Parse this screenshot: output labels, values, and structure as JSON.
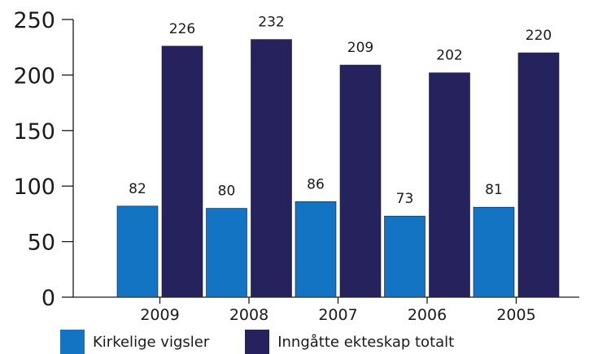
{
  "chart_data": {
    "type": "bar",
    "title": "",
    "xlabel": "",
    "ylabel": "",
    "categories": [
      "2009",
      "2008",
      "2007",
      "2006",
      "2005"
    ],
    "series": [
      {
        "name": "Kirkelige vigsler",
        "values": [
          82,
          80,
          86,
          73,
          81
        ],
        "color": "#1474c4"
      },
      {
        "name": "Inngåtte ekteskap totalt",
        "values": [
          226,
          232,
          209,
          202,
          220
        ],
        "color": "#26225e"
      }
    ],
    "ylim": [
      0,
      250
    ],
    "yticks": [
      0,
      50,
      100,
      150,
      200,
      250
    ],
    "data_labels": true,
    "grid": false,
    "legend_position": "bottom-left"
  }
}
